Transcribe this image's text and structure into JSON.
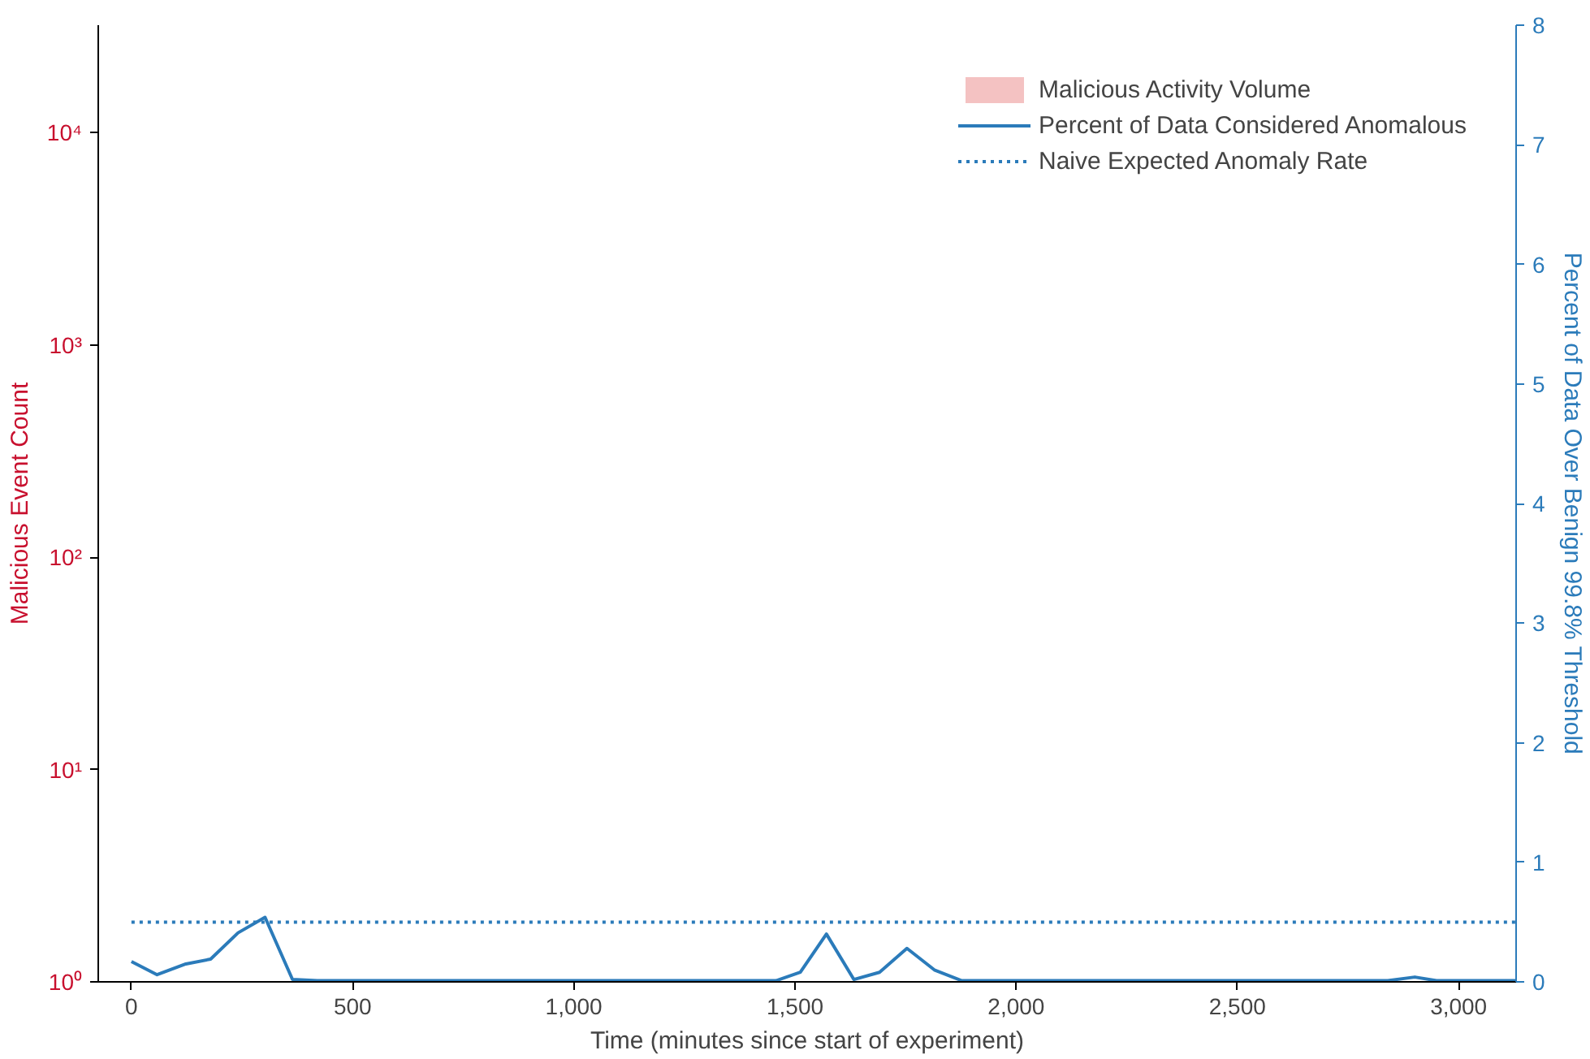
{
  "chart_data": {
    "type": "line",
    "xlabel": "Time (minutes since start of experiment)",
    "ylabel": "Malicious Event Count",
    "y2label": "Percent of Data Over Benign 99.8% Threshold",
    "xlim": [
      -75,
      3130
    ],
    "xticks": [
      0,
      500,
      {
        "value": 1000,
        "label": "1,000"
      },
      {
        "value": 1500,
        "label": "1,500"
      },
      {
        "value": 2000,
        "label": "2,000"
      },
      {
        "value": 2500,
        "label": "2,500"
      },
      {
        "value": 3000,
        "label": "3,000"
      }
    ],
    "ylim": [
      1,
      32000
    ],
    "yticks": [
      {
        "value": 1,
        "label": "10⁰"
      },
      {
        "value": 10,
        "label": "10¹"
      },
      {
        "value": 100,
        "label": "10²"
      },
      {
        "value": 1000,
        "label": "10³"
      },
      {
        "value": 10000,
        "label": "10⁴"
      }
    ],
    "log": "y",
    "y2lim": [
      0,
      8
    ],
    "y2ticks": [
      0,
      1,
      2,
      3,
      4,
      5,
      6,
      7,
      8
    ],
    "grid": false,
    "legend": "top right",
    "series": [
      {
        "name": "Malicious Activity Volume",
        "type": "area",
        "color": "#f4c2c2"
      },
      {
        "name": "Percent of Data Considered Anomalous",
        "axis": "y2",
        "color": "#2b7bba",
        "line_style": "solid",
        "x": [
          0,
          58,
          123,
          179,
          241,
          302,
          364,
          420,
          600,
          900,
          1200,
          1457,
          1512,
          1571,
          1633,
          1691,
          1753,
          1815,
          1877,
          2100,
          2500,
          2840,
          2901,
          2950,
          3130
        ],
        "values": [
          0.17,
          0.06,
          0.15,
          0.19,
          0.41,
          0.54,
          0.02,
          0.01,
          0.01,
          0.01,
          0.01,
          0.01,
          0.08,
          0.4,
          0.02,
          0.08,
          0.28,
          0.1,
          0.01,
          0.01,
          0.01,
          0.01,
          0.04,
          0.01,
          0.01
        ]
      },
      {
        "name": "Naive Expected Anomaly Rate",
        "axis": "y2",
        "color": "#2b7bba",
        "line_style": "dotted",
        "x": [
          0,
          3130
        ],
        "values": [
          0.5,
          0.5
        ]
      }
    ]
  }
}
